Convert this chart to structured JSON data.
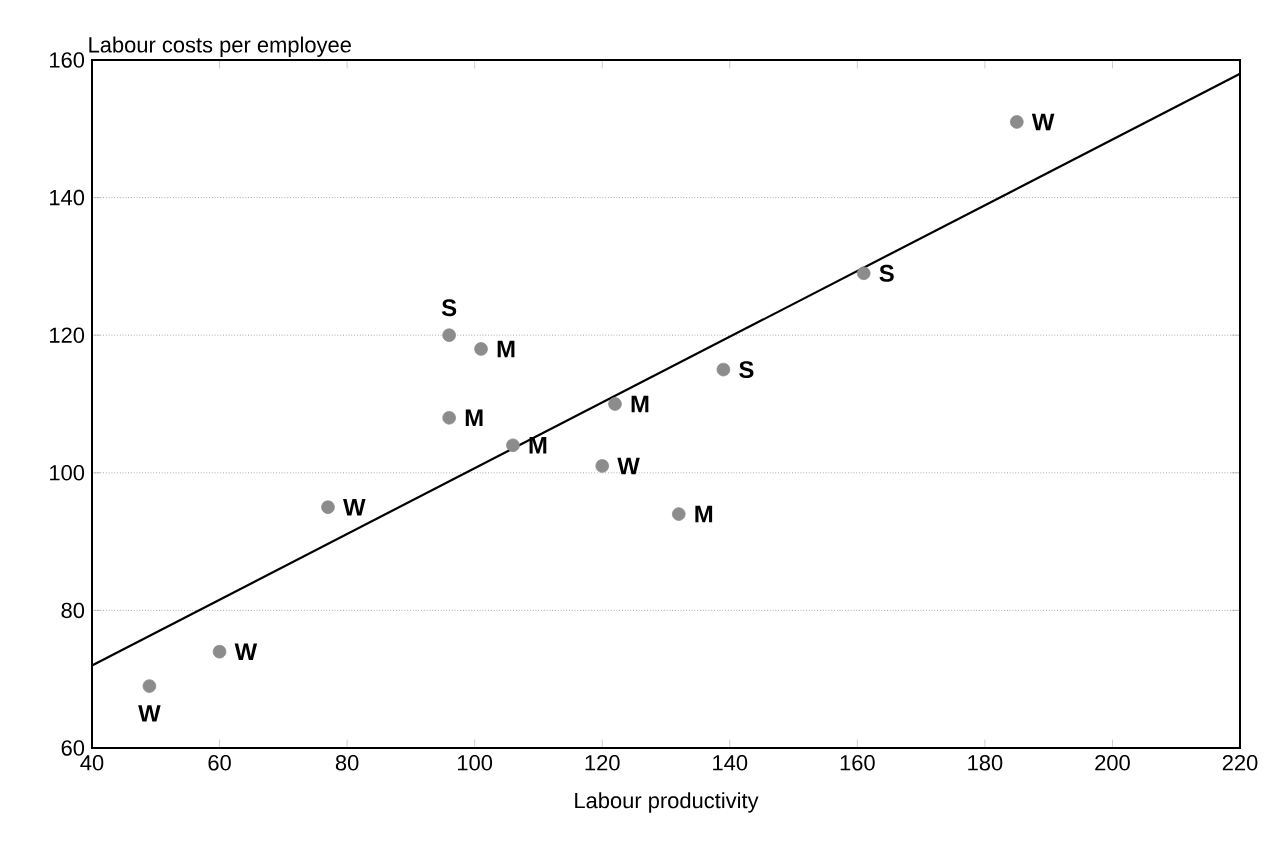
{
  "chart_data": {
    "type": "scatter",
    "xlabel": "Labour productivity",
    "ylabel": "Labour costs per employee",
    "xlim": [
      40,
      220
    ],
    "ylim": [
      60,
      160
    ],
    "xticks": [
      40,
      60,
      80,
      100,
      120,
      140,
      160,
      180,
      200,
      220
    ],
    "yticks": [
      60,
      80,
      100,
      120,
      140,
      160
    ],
    "grid": "y",
    "series": [
      {
        "name": "W",
        "color": "#8c8c8c",
        "x": [
          49,
          60,
          77,
          120,
          185
        ],
        "values": [
          69,
          74,
          95,
          101,
          151
        ],
        "marker": "circle"
      },
      {
        "name": "M",
        "color": "#8c8c8c",
        "x": [
          101,
          96,
          106,
          122,
          132
        ],
        "values": [
          118,
          108,
          104,
          110,
          94
        ],
        "marker": "circle"
      },
      {
        "name": "S",
        "color": "#8c8c8c",
        "x": [
          96,
          139,
          161
        ],
        "values": [
          120,
          115,
          129
        ],
        "marker": "circle"
      },
      {
        "type": "line",
        "color": "#000000",
        "x": [
          40,
          220
        ],
        "values": [
          72,
          158
        ],
        "line_style": "solid",
        "marker": "none"
      }
    ]
  }
}
